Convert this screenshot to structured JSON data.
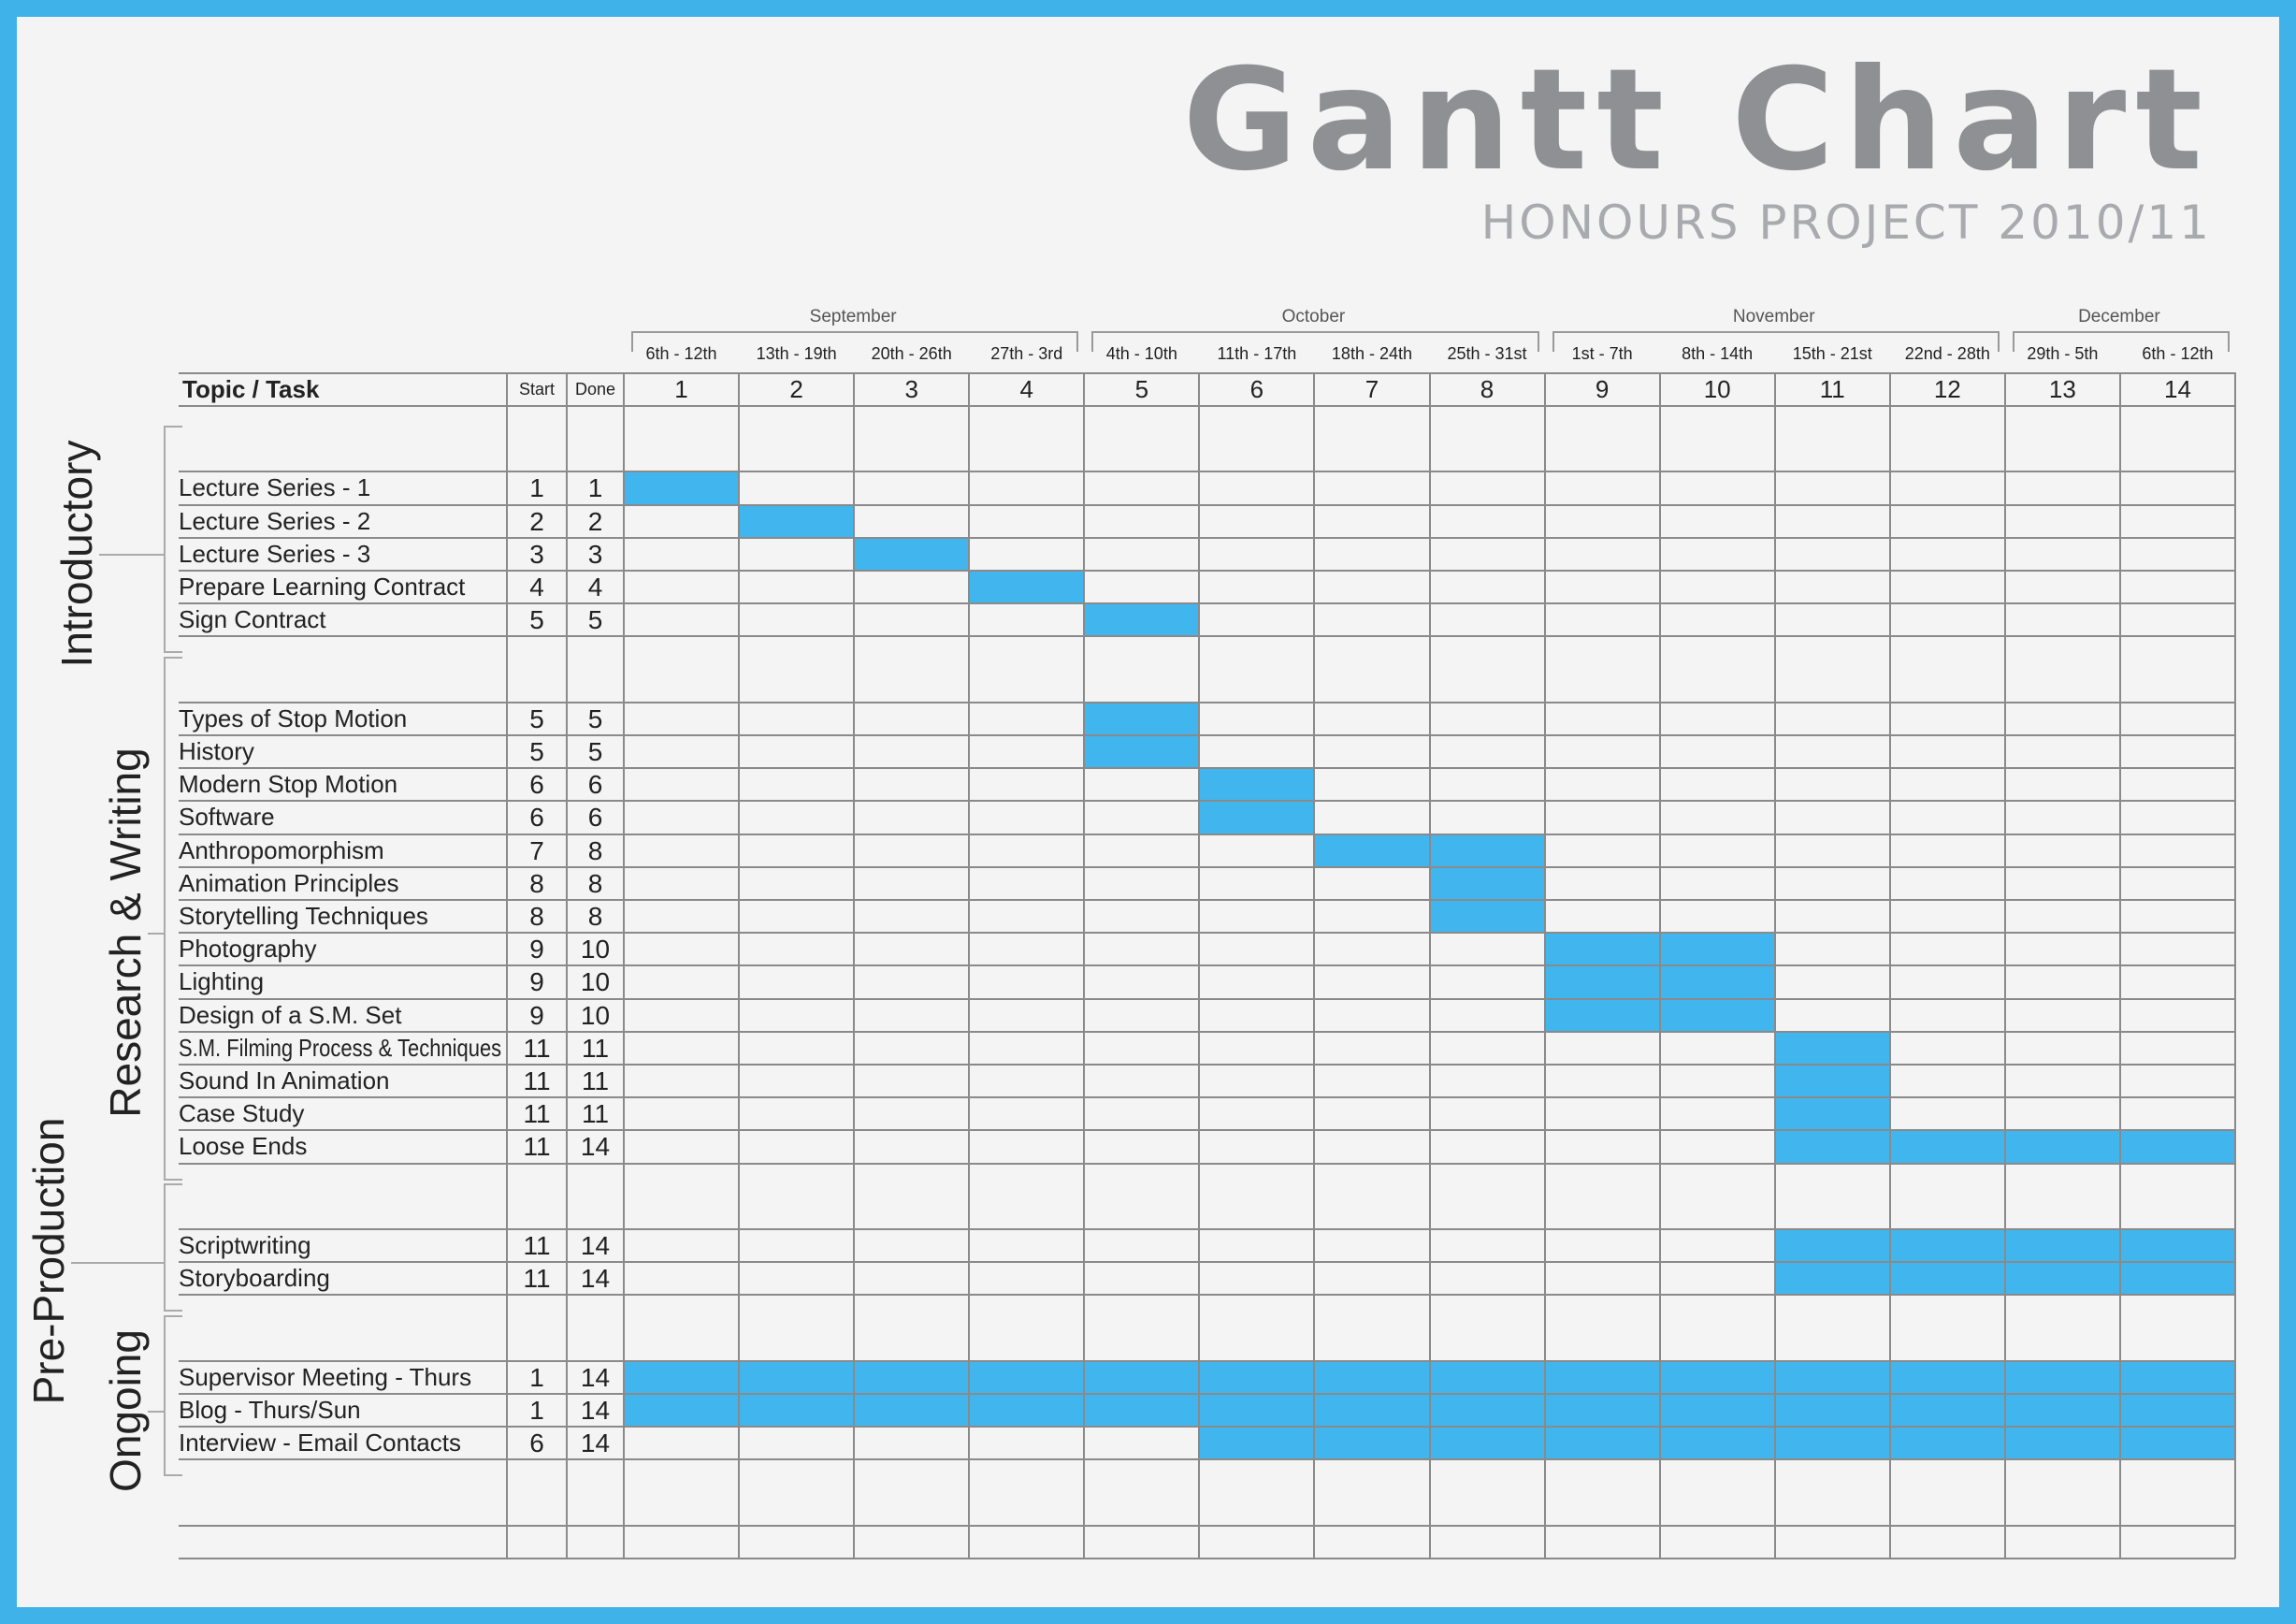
{
  "title": "Gantt Chart",
  "subtitle": "HONOURS PROJECT 2010/11",
  "colors": {
    "frame": "#3fb2ea",
    "bar": "#41b6ee",
    "title": "#8e9093",
    "grid": "#8a8a8a"
  },
  "chart_data": {
    "type": "gantt",
    "header": {
      "task": "Topic / Task",
      "start": "Start",
      "done": "Done"
    },
    "months": [
      {
        "name": "September",
        "weeks": [
          1,
          4
        ]
      },
      {
        "name": "October",
        "weeks": [
          5,
          8
        ]
      },
      {
        "name": "November",
        "weeks": [
          9,
          12
        ]
      },
      {
        "name": "December",
        "weeks": [
          13,
          14
        ]
      }
    ],
    "weeks": [
      {
        "n": "1",
        "range": "6th - 12th"
      },
      {
        "n": "2",
        "range": "13th - 19th"
      },
      {
        "n": "3",
        "range": "20th - 26th"
      },
      {
        "n": "4",
        "range": "27th - 3rd"
      },
      {
        "n": "5",
        "range": "4th - 10th"
      },
      {
        "n": "6",
        "range": "11th - 17th"
      },
      {
        "n": "7",
        "range": "18th - 24th"
      },
      {
        "n": "8",
        "range": "25th - 31st"
      },
      {
        "n": "9",
        "range": "1st - 7th"
      },
      {
        "n": "10",
        "range": "8th - 14th"
      },
      {
        "n": "11",
        "range": "15th - 21st"
      },
      {
        "n": "12",
        "range": "22nd - 28th"
      },
      {
        "n": "13",
        "range": "29th - 5th"
      },
      {
        "n": "14",
        "range": "6th - 12th"
      }
    ],
    "groups": [
      {
        "name": "Introductory",
        "tasks": [
          {
            "task": "Lecture Series - 1",
            "start": 1,
            "done": 1
          },
          {
            "task": "Lecture Series - 2",
            "start": 2,
            "done": 2
          },
          {
            "task": "Lecture Series - 3",
            "start": 3,
            "done": 3
          },
          {
            "task": "Prepare Learning Contract",
            "start": 4,
            "done": 4
          },
          {
            "task": "Sign Contract",
            "start": 5,
            "done": 5
          }
        ]
      },
      {
        "name": "Research & Writing",
        "tasks": [
          {
            "task": "Types of Stop Motion",
            "start": 5,
            "done": 5
          },
          {
            "task": "History",
            "start": 5,
            "done": 5
          },
          {
            "task": "Modern Stop Motion",
            "start": 6,
            "done": 6
          },
          {
            "task": "Software",
            "start": 6,
            "done": 6
          },
          {
            "task": "Anthropomorphism",
            "start": 7,
            "done": 8
          },
          {
            "task": "Animation Principles",
            "start": 8,
            "done": 8
          },
          {
            "task": "Storytelling Techniques",
            "start": 8,
            "done": 8
          },
          {
            "task": "Photography",
            "start": 9,
            "done": 10
          },
          {
            "task": "Lighting",
            "start": 9,
            "done": 10
          },
          {
            "task": "Design of a S.M. Set",
            "start": 9,
            "done": 10
          },
          {
            "task": "S.M. Filming Process & Techniques",
            "start": 11,
            "done": 11
          },
          {
            "task": "Sound In Animation",
            "start": 11,
            "done": 11
          },
          {
            "task": "Case Study",
            "start": 11,
            "done": 11
          },
          {
            "task": "Loose Ends",
            "start": 11,
            "done": 14
          }
        ]
      },
      {
        "name": "Pre-Production",
        "tasks": [
          {
            "task": "Scriptwriting",
            "start": 11,
            "done": 14
          },
          {
            "task": "Storyboarding",
            "start": 11,
            "done": 14
          }
        ]
      },
      {
        "name": "Ongoing",
        "tasks": [
          {
            "task": "Supervisor Meeting - Thurs",
            "start": 1,
            "done": 14
          },
          {
            "task": "Blog - Thurs/Sun",
            "start": 1,
            "done": 14
          },
          {
            "task": "Interview - Email Contacts",
            "start": 6,
            "done": 14
          }
        ]
      }
    ]
  }
}
